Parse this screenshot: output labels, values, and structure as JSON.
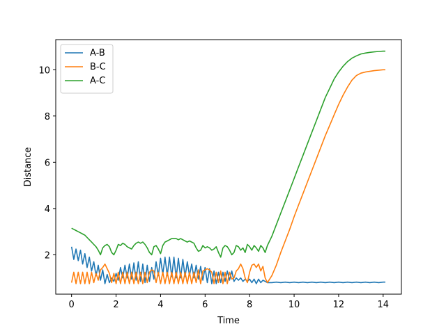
{
  "chart_data": {
    "type": "line",
    "xlabel": "Time",
    "ylabel": "Distance",
    "xlim": [
      -0.71,
      14.82
    ],
    "ylim": [
      0.3,
      11.3
    ],
    "xticks": [
      0,
      2,
      4,
      6,
      8,
      10,
      12,
      14
    ],
    "yticks": [
      2,
      4,
      6,
      8,
      10
    ],
    "grid": false,
    "legend_position": "top-left",
    "series": [
      {
        "name": "A-B",
        "color": "#1f77b4",
        "x": [
          0.0,
          0.1,
          0.2,
          0.3,
          0.4,
          0.5,
          0.6,
          0.7,
          0.8,
          0.9,
          1.0,
          1.1,
          1.2,
          1.3,
          1.4,
          1.5,
          1.6,
          1.7,
          1.8,
          1.9,
          2.0,
          2.1,
          2.2,
          2.3,
          2.4,
          2.5,
          2.6,
          2.7,
          2.8,
          2.9,
          3.0,
          3.1,
          3.2,
          3.3,
          3.4,
          3.5,
          3.6,
          3.7,
          3.8,
          3.9,
          4.0,
          4.1,
          4.2,
          4.3,
          4.4,
          4.5,
          4.6,
          4.7,
          4.8,
          4.9,
          5.0,
          5.1,
          5.2,
          5.3,
          5.4,
          5.5,
          5.6,
          5.7,
          5.8,
          5.9,
          6.0,
          6.1,
          6.2,
          6.3,
          6.4,
          6.5,
          6.6,
          6.7,
          6.8,
          6.9,
          7.0,
          7.1,
          7.2,
          7.3,
          7.4,
          7.5,
          7.6,
          7.7,
          7.8,
          7.9,
          8.0,
          8.1,
          8.2,
          8.3,
          8.4,
          8.5,
          8.6,
          8.7,
          8.8,
          9.0,
          9.2,
          9.4,
          9.6,
          9.8,
          10.0,
          10.2,
          10.4,
          10.6,
          10.8,
          11.0,
          11.2,
          11.4,
          11.6,
          11.8,
          12.0,
          12.2,
          12.4,
          12.6,
          12.8,
          13.0,
          13.2,
          13.4,
          13.6,
          13.8,
          14.0,
          14.1
        ],
        "y": [
          2.35,
          1.8,
          2.25,
          1.75,
          2.2,
          1.6,
          2.05,
          1.45,
          1.9,
          1.3,
          1.7,
          1.1,
          1.55,
          0.9,
          1.35,
          0.75,
          1.15,
          0.8,
          1.0,
          0.85,
          1.2,
          0.9,
          1.45,
          1.0,
          1.55,
          1.0,
          1.6,
          0.95,
          1.65,
          0.9,
          1.7,
          0.85,
          1.6,
          0.8,
          1.55,
          0.85,
          1.45,
          0.95,
          1.7,
          1.1,
          1.85,
          1.15,
          1.9,
          1.1,
          1.9,
          1.05,
          1.9,
          1.0,
          1.85,
          1.0,
          1.8,
          1.05,
          1.7,
          1.1,
          1.6,
          1.0,
          1.55,
          0.95,
          1.5,
          0.9,
          1.45,
          0.8,
          1.4,
          0.75,
          1.3,
          0.75,
          1.25,
          0.8,
          1.25,
          0.85,
          1.3,
          0.9,
          1.3,
          0.85,
          1.0,
          0.9,
          1.0,
          0.85,
          0.95,
          0.85,
          0.95,
          0.8,
          0.95,
          0.75,
          0.95,
          0.8,
          0.9,
          0.85,
          0.8,
          0.8,
          0.82,
          0.8,
          0.82,
          0.8,
          0.82,
          0.8,
          0.82,
          0.8,
          0.82,
          0.8,
          0.82,
          0.8,
          0.82,
          0.8,
          0.82,
          0.8,
          0.82,
          0.8,
          0.82,
          0.8,
          0.82,
          0.8,
          0.82,
          0.8,
          0.82,
          0.82
        ]
      },
      {
        "name": "B-C",
        "color": "#ff7f0e",
        "x": [
          0.0,
          0.1,
          0.2,
          0.3,
          0.4,
          0.5,
          0.6,
          0.7,
          0.8,
          0.9,
          1.0,
          1.1,
          1.2,
          1.3,
          1.4,
          1.5,
          1.6,
          1.7,
          1.8,
          1.9,
          2.0,
          2.1,
          2.2,
          2.3,
          2.4,
          2.5,
          2.6,
          2.7,
          2.8,
          2.9,
          3.0,
          3.1,
          3.2,
          3.3,
          3.4,
          3.5,
          3.6,
          3.7,
          3.8,
          3.9,
          4.0,
          4.1,
          4.2,
          4.3,
          4.4,
          4.5,
          4.6,
          4.7,
          4.8,
          4.9,
          5.0,
          5.1,
          5.2,
          5.3,
          5.4,
          5.5,
          5.6,
          5.7,
          5.8,
          5.9,
          6.0,
          6.1,
          6.2,
          6.3,
          6.4,
          6.5,
          6.6,
          6.7,
          6.8,
          6.9,
          7.0,
          7.1,
          7.2,
          7.3,
          7.4,
          7.5,
          7.6,
          7.7,
          7.8,
          7.9,
          8.0,
          8.1,
          8.2,
          8.3,
          8.4,
          8.5,
          8.6,
          8.7,
          8.8,
          9.0,
          9.2,
          9.4,
          9.6,
          9.8,
          10.0,
          10.2,
          10.4,
          10.6,
          10.8,
          11.0,
          11.2,
          11.4,
          11.6,
          11.8,
          12.0,
          12.2,
          12.4,
          12.6,
          12.8,
          13.0,
          13.2,
          13.4,
          13.6,
          13.8,
          14.0,
          14.1
        ],
        "y": [
          0.8,
          1.25,
          0.75,
          1.25,
          0.75,
          1.25,
          0.75,
          1.25,
          0.75,
          1.25,
          0.8,
          1.2,
          0.9,
          1.35,
          1.45,
          1.6,
          1.4,
          1.2,
          0.8,
          1.2,
          0.75,
          1.25,
          0.75,
          1.25,
          0.75,
          1.25,
          0.75,
          1.25,
          0.75,
          1.25,
          0.75,
          1.25,
          0.75,
          1.25,
          0.8,
          1.25,
          1.35,
          1.3,
          0.8,
          1.25,
          0.75,
          1.25,
          0.75,
          1.25,
          0.75,
          1.25,
          0.75,
          1.25,
          0.75,
          1.25,
          0.75,
          1.25,
          0.75,
          1.25,
          0.75,
          1.25,
          0.8,
          1.35,
          0.75,
          1.3,
          1.35,
          1.4,
          1.35,
          1.25,
          0.75,
          1.25,
          0.8,
          1.3,
          0.75,
          1.25,
          0.75,
          1.25,
          0.95,
          1.0,
          1.3,
          1.4,
          1.6,
          1.4,
          1.0,
          0.8,
          1.25,
          1.55,
          1.6,
          1.45,
          1.6,
          1.3,
          1.5,
          1.0,
          0.8,
          1.1,
          1.55,
          2.1,
          2.6,
          3.1,
          3.65,
          4.15,
          4.65,
          5.15,
          5.65,
          6.15,
          6.65,
          7.15,
          7.6,
          8.05,
          8.5,
          8.9,
          9.25,
          9.55,
          9.75,
          9.85,
          9.9,
          9.93,
          9.96,
          9.98,
          10.0,
          10.0
        ]
      },
      {
        "name": "A-C",
        "color": "#2ca02c",
        "x": [
          0.0,
          0.1,
          0.2,
          0.3,
          0.4,
          0.5,
          0.6,
          0.7,
          0.8,
          0.9,
          1.0,
          1.1,
          1.2,
          1.3,
          1.4,
          1.5,
          1.6,
          1.7,
          1.8,
          1.9,
          2.0,
          2.1,
          2.2,
          2.3,
          2.4,
          2.5,
          2.6,
          2.7,
          2.8,
          2.9,
          3.0,
          3.1,
          3.2,
          3.3,
          3.4,
          3.5,
          3.6,
          3.7,
          3.8,
          3.9,
          4.0,
          4.1,
          4.2,
          4.3,
          4.4,
          4.5,
          4.6,
          4.7,
          4.8,
          4.9,
          5.0,
          5.1,
          5.2,
          5.3,
          5.4,
          5.5,
          5.6,
          5.7,
          5.8,
          5.9,
          6.0,
          6.1,
          6.2,
          6.3,
          6.4,
          6.5,
          6.6,
          6.7,
          6.8,
          6.9,
          7.0,
          7.1,
          7.2,
          7.3,
          7.4,
          7.5,
          7.6,
          7.7,
          7.8,
          7.9,
          8.0,
          8.1,
          8.2,
          8.3,
          8.4,
          8.5,
          8.6,
          8.7,
          8.8,
          9.0,
          9.2,
          9.4,
          9.6,
          9.8,
          10.0,
          10.2,
          10.4,
          10.6,
          10.8,
          11.0,
          11.2,
          11.4,
          11.6,
          11.8,
          12.0,
          12.2,
          12.4,
          12.6,
          12.8,
          13.0,
          13.2,
          13.4,
          13.6,
          13.8,
          14.0,
          14.1
        ],
        "y": [
          3.15,
          3.1,
          3.05,
          3.0,
          2.95,
          2.9,
          2.85,
          2.75,
          2.65,
          2.55,
          2.45,
          2.35,
          2.2,
          2.0,
          2.3,
          2.4,
          2.45,
          2.35,
          2.1,
          2.0,
          2.2,
          2.45,
          2.4,
          2.5,
          2.45,
          2.35,
          2.3,
          2.25,
          2.4,
          2.5,
          2.55,
          2.5,
          2.55,
          2.45,
          2.3,
          2.1,
          2.0,
          2.35,
          2.4,
          2.25,
          2.05,
          2.4,
          2.55,
          2.6,
          2.65,
          2.7,
          2.7,
          2.7,
          2.65,
          2.7,
          2.65,
          2.6,
          2.55,
          2.6,
          2.55,
          2.5,
          2.3,
          2.15,
          2.2,
          2.4,
          2.3,
          2.35,
          2.3,
          2.2,
          2.25,
          2.35,
          2.1,
          1.9,
          2.3,
          2.4,
          2.35,
          2.2,
          2.0,
          2.1,
          2.4,
          2.35,
          2.2,
          2.3,
          2.1,
          2.45,
          2.35,
          2.2,
          2.4,
          2.3,
          2.15,
          2.4,
          2.3,
          2.1,
          2.4,
          2.8,
          3.3,
          3.8,
          4.3,
          4.8,
          5.3,
          5.8,
          6.3,
          6.8,
          7.3,
          7.8,
          8.3,
          8.8,
          9.2,
          9.6,
          9.9,
          10.15,
          10.35,
          10.5,
          10.6,
          10.68,
          10.72,
          10.75,
          10.77,
          10.79,
          10.8,
          10.8
        ]
      }
    ]
  }
}
